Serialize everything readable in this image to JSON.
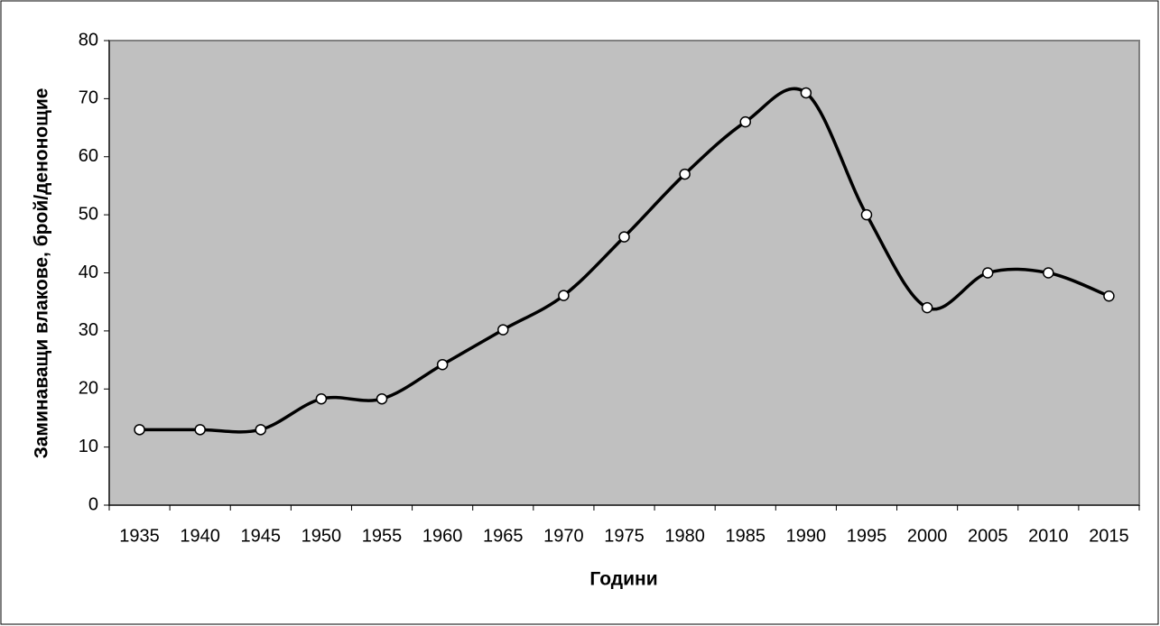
{
  "chart_data": {
    "type": "line",
    "x_label": "Години",
    "y_label": "Заминаващи влакове, брой/денонощие",
    "categories": [
      "1935",
      "1940",
      "1945",
      "1950",
      "1955",
      "1960",
      "1965",
      "1970",
      "1975",
      "1980",
      "1985",
      "1990",
      "1995",
      "2000",
      "2005",
      "2010",
      "2015"
    ],
    "values": [
      13,
      13,
      13,
      18.3,
      18.3,
      24.2,
      30.2,
      36.1,
      46.2,
      57,
      66,
      71,
      50,
      34,
      40,
      40,
      36
    ],
    "color": "#000000",
    "ylim": [
      0,
      80
    ],
    "yticks": [
      0,
      10,
      20,
      30,
      40,
      50,
      60,
      70,
      80
    ],
    "grid": false,
    "smooth": true
  }
}
